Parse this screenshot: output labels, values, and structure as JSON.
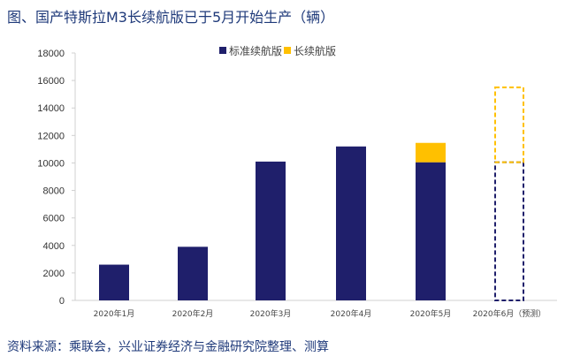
{
  "title": "图、国产特斯拉M3长续航版已于5月开始生产（辆）",
  "source": "资料来源：乘联会，兴业证券经济与金融研究院整理、测算",
  "colors": {
    "standard": "#1f1f6b",
    "long": "#ffc000",
    "axis": "#d0d0d0"
  },
  "chart_data": {
    "type": "bar",
    "stacked": true,
    "title": "图、国产特斯拉M3长续航版已于5月开始生产（辆）",
    "categories": [
      "2020年1月",
      "2020年2月",
      "2020年3月",
      "2020年4月",
      "2020年5月",
      "2020年6月（预测）"
    ],
    "series": [
      {
        "name": "标准续航版",
        "values": [
          2600,
          3900,
          10100,
          11200,
          10050,
          10050
        ]
      },
      {
        "name": "长续航版",
        "values": [
          0,
          0,
          0,
          0,
          1410,
          5450
        ]
      }
    ],
    "forecast": [
      false,
      false,
      false,
      false,
      false,
      true
    ],
    "yticks": [
      0,
      2000,
      4000,
      6000,
      8000,
      10000,
      12000,
      14000,
      16000,
      18000
    ],
    "ylim": [
      0,
      18000
    ],
    "xlabel": "",
    "ylabel": "",
    "legend": "top-center",
    "grid": false
  }
}
